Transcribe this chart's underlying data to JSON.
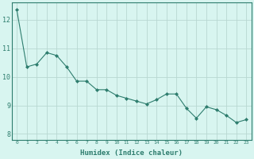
{
  "x": [
    0,
    1,
    2,
    3,
    4,
    5,
    6,
    7,
    8,
    9,
    10,
    11,
    12,
    13,
    14,
    15,
    16,
    17,
    18,
    19,
    20,
    21,
    22,
    23
  ],
  "y": [
    12.35,
    10.35,
    10.45,
    10.85,
    10.75,
    10.35,
    9.85,
    9.85,
    9.55,
    9.55,
    9.35,
    9.25,
    9.15,
    9.05,
    9.2,
    9.4,
    9.4,
    8.9,
    8.55,
    8.95,
    8.85,
    8.65,
    8.4,
    8.5
  ],
  "line_color": "#2e7d6e",
  "marker": "D",
  "marker_size": 2,
  "bg_color": "#d8f5f0",
  "grid_color": "#b8d8d2",
  "xlabel": "Humidex (Indice chaleur)",
  "ylim": [
    7.8,
    12.6
  ],
  "xlim": [
    -0.5,
    23.5
  ],
  "yticks": [
    8,
    9,
    10,
    11,
    12
  ],
  "xticks": [
    0,
    1,
    2,
    3,
    4,
    5,
    6,
    7,
    8,
    9,
    10,
    11,
    12,
    13,
    14,
    15,
    16,
    17,
    18,
    19,
    20,
    21,
    22,
    23
  ],
  "tick_color": "#2e7d6e",
  "label_color": "#2e7d6e",
  "axis_color": "#2e7d6e",
  "xlabel_fontsize": 6.5,
  "xtick_fontsize": 4.5,
  "ytick_fontsize": 6.0
}
